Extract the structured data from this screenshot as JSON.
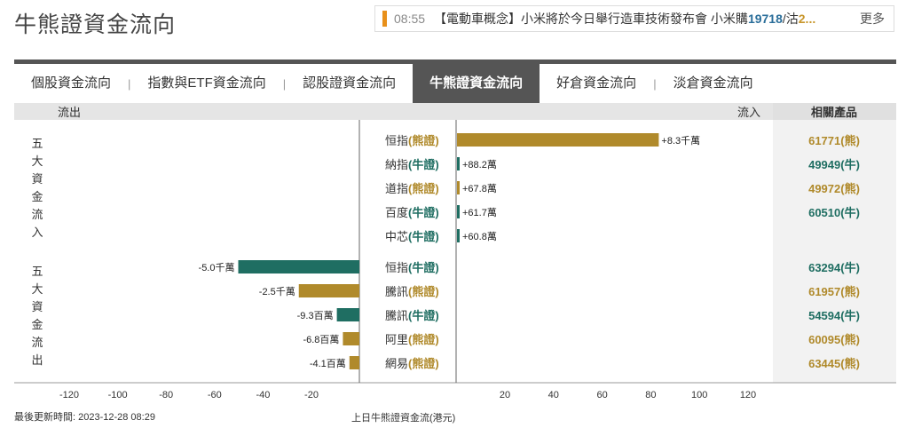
{
  "page_title": "牛熊證資金流向",
  "ticker": {
    "time": "08:55",
    "headline": "【電動車概念】小米將於今日舉行造車技術發布會 小米購",
    "code": "19718",
    "suffix": "/沽",
    "change": "2...",
    "more": "更多"
  },
  "tabs": [
    {
      "label": "個股資金流向",
      "active": false
    },
    {
      "label": "指數與ETF資金流向",
      "active": false
    },
    {
      "label": "認股證資金流向",
      "active": false
    },
    {
      "label": "牛熊證資金流向",
      "active": true
    },
    {
      "label": "好倉資金流向",
      "active": false
    },
    {
      "label": "淡倉資金流向",
      "active": false
    }
  ],
  "colors": {
    "bear": "#b08a2b",
    "bull": "#1f6e62",
    "header_bg": "#e5e5e5",
    "product_bg": "#f2f2f2"
  },
  "chart_data": {
    "type": "bar",
    "header_outflow": "流出",
    "header_inflow": "流入",
    "header_products": "相關產品",
    "group_inflow_label": "五大資金流入",
    "group_outflow_label": "五大資金流出",
    "xlabel": "上日牛熊證資金流(港元)",
    "x_ticks": [
      -120,
      -100,
      -80,
      -60,
      -40,
      -20,
      20,
      40,
      60,
      80,
      100,
      120
    ],
    "inflow": [
      {
        "name": "恒指",
        "type": "(熊證)",
        "kind": "bear",
        "value": 83000000,
        "label": "+8.3千萬",
        "product": "61771(熊)"
      },
      {
        "name": "納指",
        "type": "(牛證)",
        "kind": "bull",
        "value": 882000,
        "label": "+88.2萬",
        "product": "49949(牛)"
      },
      {
        "name": "道指",
        "type": "(熊證)",
        "kind": "bear",
        "value": 678000,
        "label": "+67.8萬",
        "product": "49972(熊)"
      },
      {
        "name": "百度",
        "type": "(牛證)",
        "kind": "bull",
        "value": 617000,
        "label": "+61.7萬",
        "product": "60510(牛)"
      },
      {
        "name": "中芯",
        "type": "(牛證)",
        "kind": "bull",
        "value": 608000,
        "label": "+60.8萬",
        "product": ""
      }
    ],
    "outflow": [
      {
        "name": "恒指",
        "type": "(牛證)",
        "kind": "bull",
        "value": -50000000,
        "label": "-5.0千萬",
        "product": "63294(牛)"
      },
      {
        "name": "騰訊",
        "type": "(熊證)",
        "kind": "bear",
        "value": -25000000,
        "label": "-2.5千萬",
        "product": "61957(熊)"
      },
      {
        "name": "騰訊",
        "type": "(牛證)",
        "kind": "bull",
        "value": -9300000,
        "label": "-9.3百萬",
        "product": "54594(牛)"
      },
      {
        "name": "阿里",
        "type": "(熊證)",
        "kind": "bear",
        "value": -6800000,
        "label": "-6.8百萬",
        "product": "60095(熊)"
      },
      {
        "name": "網易",
        "type": "(熊證)",
        "kind": "bear",
        "value": -4100000,
        "label": "-4.1百萬",
        "product": "63445(熊)"
      }
    ]
  },
  "footer": {
    "updated": "最後更新時間: 2023-12-28 08:29"
  }
}
